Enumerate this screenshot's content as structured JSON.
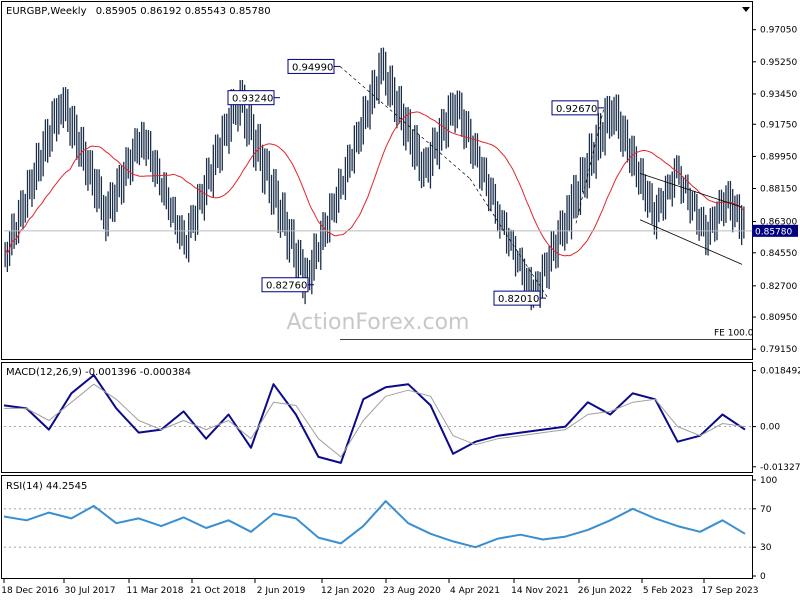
{
  "header": {
    "symbol": "EURGBP,Weekly",
    "ohlc": "0.85905 0.86192 0.85543 0.85780"
  },
  "watermark": "ActionForex.com",
  "colors": {
    "price": "#1a2e4a",
    "sma": "#e0262c",
    "macd": "#0a0a8a",
    "signal": "#a0a0a0",
    "rsi": "#3a8fd0",
    "callout_border": "#000080"
  },
  "chart_data": [
    {
      "type": "bar",
      "name": "price",
      "ylim": [
        0.786,
        0.986
      ],
      "y_ticks": [
        "0.97050",
        "0.95250",
        "0.93450",
        "0.91750",
        "0.89950",
        "0.88150",
        "0.86300",
        "0.84550",
        "0.82700",
        "0.80950",
        "0.79150"
      ],
      "last_price": "0.85780",
      "x_labels": [
        "18 Dec 2016",
        "30 Jul 2017",
        "11 Mar 2018",
        "21 Oct 2018",
        "2 Jun 2019",
        "12 Jan 2020",
        "23 Aug 2020",
        "4 Apr 2021",
        "14 Nov 2021",
        "26 Jun 2022",
        "5 Feb 2023",
        "17 Sep 2023"
      ],
      "swing_points": [
        {
          "start": 0.846,
          "end": 0.93,
          "step": 0.019
        },
        {
          "start": 0.93,
          "end": 0.866,
          "step": 0.014
        },
        {
          "start": 0.866,
          "end": 0.912,
          "step": 0.012
        },
        {
          "start": 0.912,
          "end": 0.852,
          "step": 0.015
        },
        {
          "start": 0.852,
          "end": 0.932,
          "step": 0.017
        },
        {
          "start": 0.932,
          "end": 0.829,
          "step": 0.019
        },
        {
          "start": 0.829,
          "end": 0.949,
          "step": 0.018
        },
        {
          "start": 0.949,
          "end": 0.89,
          "step": 0.016
        },
        {
          "start": 0.89,
          "end": 0.929,
          "step": 0.013
        },
        {
          "start": 0.929,
          "end": 0.866,
          "step": 0.012
        },
        {
          "start": 0.866,
          "end": 0.822,
          "step": 0.011
        },
        {
          "start": 0.822,
          "end": 0.868,
          "step": 0.013
        },
        {
          "start": 0.868,
          "end": 0.926,
          "step": 0.02
        },
        {
          "start": 0.926,
          "end": 0.867,
          "step": 0.014
        },
        {
          "start": 0.867,
          "end": 0.892,
          "step": 0.012
        },
        {
          "start": 0.892,
          "end": 0.856,
          "step": 0.011
        },
        {
          "start": 0.856,
          "end": 0.876,
          "step": 0.01
        },
        {
          "start": 0.876,
          "end": 0.858,
          "step": 0.009
        }
      ],
      "annotations": [
        {
          "label": "0.93240",
          "value": 0.9324
        },
        {
          "label": "0.94990",
          "value": 0.9499
        },
        {
          "label": "0.82760",
          "value": 0.8276
        },
        {
          "label": "0.82010",
          "value": 0.8201
        },
        {
          "label": "0.92670",
          "value": 0.9267
        }
      ],
      "fe_label": "FE 100.0",
      "fe_value": 0.797
    },
    {
      "type": "line",
      "name": "MACD",
      "label": "MACD(12,26,9) -0.001396 -0.000384",
      "ylim": [
        -0.015,
        0.02
      ],
      "y_ticks": [
        "0.018492",
        "0.00",
        "-0.013279"
      ],
      "series": [
        {
          "values": [
            0.007,
            0.006,
            -0.001,
            0.011,
            0.017,
            0.006,
            -0.002,
            -0.001,
            0.005,
            -0.004,
            0.004,
            -0.007,
            0.014,
            0.004,
            -0.01,
            -0.012,
            0.009,
            0.013,
            0.014,
            0.007,
            -0.009,
            -0.005,
            -0.003,
            -0.002,
            -0.001,
            0.0,
            0.008,
            0.004,
            0.011,
            0.009,
            -0.005,
            -0.003,
            0.004,
            -0.001
          ]
        },
        {
          "values": [
            0.006,
            0.006,
            0.002,
            0.008,
            0.014,
            0.009,
            0.002,
            -0.001,
            0.002,
            -0.001,
            0.002,
            -0.004,
            0.008,
            0.007,
            -0.004,
            -0.01,
            0.002,
            0.01,
            0.012,
            0.01,
            -0.003,
            -0.006,
            -0.004,
            -0.003,
            -0.002,
            -0.001,
            0.004,
            0.005,
            0.008,
            0.009,
            0.0,
            -0.003,
            0.001,
            -0.0
          ]
        }
      ]
    },
    {
      "type": "line",
      "name": "RSI",
      "label": "RSI(14) 44.2545",
      "ylim": [
        0,
        100
      ],
      "y_ticks": [
        "100",
        "70",
        "30",
        "0"
      ],
      "series": [
        {
          "values": [
            62,
            58,
            66,
            60,
            73,
            55,
            60,
            52,
            61,
            50,
            58,
            46,
            65,
            60,
            40,
            34,
            52,
            78,
            55,
            44,
            36,
            30,
            39,
            43,
            38,
            41,
            48,
            58,
            70,
            60,
            52,
            46,
            58,
            44
          ]
        }
      ]
    }
  ]
}
